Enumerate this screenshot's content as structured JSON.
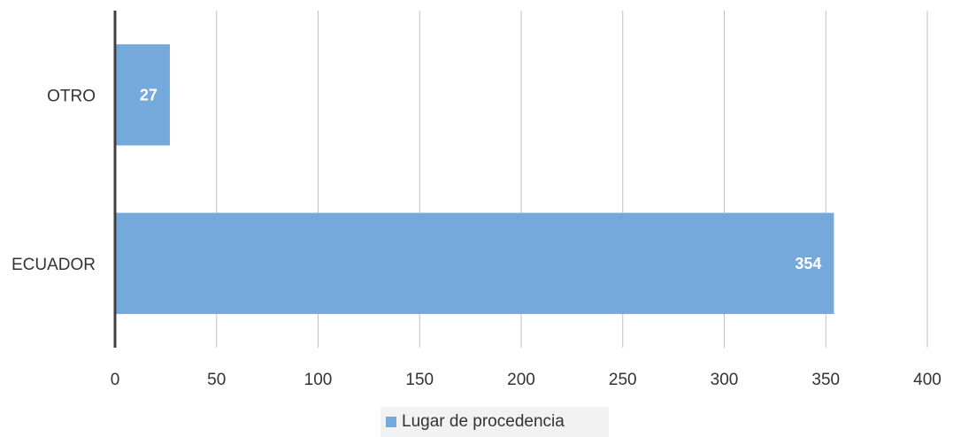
{
  "chart_data": {
    "type": "bar",
    "orientation": "horizontal",
    "categories": [
      "OTRO",
      "ECUADOR"
    ],
    "series": [
      {
        "name": "Lugar de procedencia",
        "values": [
          27,
          354
        ],
        "color": "#75a8db"
      }
    ],
    "xlim": [
      0,
      400
    ],
    "xticks": [
      0,
      50,
      100,
      150,
      200,
      250,
      300,
      350,
      400
    ],
    "grid": true,
    "legend_position": "bottom"
  }
}
